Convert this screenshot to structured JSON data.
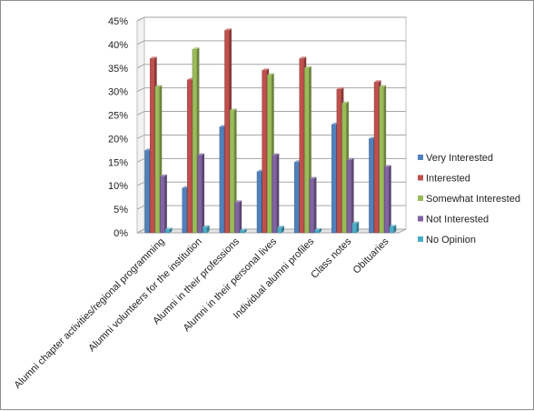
{
  "chart_data": {
    "type": "bar",
    "categories": [
      "Alumni chapter activities/regional programming",
      "Alumni volunteers for the institution",
      "Alumni in their professions",
      "Alumni in their personal lives",
      "Individual alumni profiles",
      "Class notes",
      "Obituaries"
    ],
    "series": [
      {
        "name": "Very Interested",
        "color": "#4f81bd",
        "values": [
          17.5,
          9.5,
          22.5,
          13,
          15,
          23,
          20
        ]
      },
      {
        "name": "Interested",
        "color": "#c0504d",
        "values": [
          37,
          32.5,
          43,
          34.5,
          37,
          30.5,
          32
        ]
      },
      {
        "name": "Somewhat Interested",
        "color": "#9bbb59",
        "values": [
          31,
          39,
          26,
          33.5,
          35,
          27.5,
          31
        ]
      },
      {
        "name": "Not Interested",
        "color": "#8064a2",
        "values": [
          12,
          16.5,
          6.5,
          16.5,
          11.5,
          15.5,
          14
        ]
      },
      {
        "name": "No Opinion",
        "color": "#4bacc6",
        "values": [
          0.7,
          1.2,
          0.5,
          1.1,
          0.6,
          2,
          1.3
        ]
      }
    ],
    "ylim": [
      0,
      45
    ],
    "yticks": [
      0,
      5,
      10,
      15,
      20,
      25,
      30,
      35,
      40,
      45
    ],
    "ytick_labels": [
      "0%",
      "5%",
      "10%",
      "15%",
      "20%",
      "25%",
      "30%",
      "35%",
      "40%",
      "45%"
    ],
    "grid": true,
    "legend_position": "right",
    "style": "3d-clustered-column",
    "title": "",
    "xlabel": "",
    "ylabel": ""
  }
}
